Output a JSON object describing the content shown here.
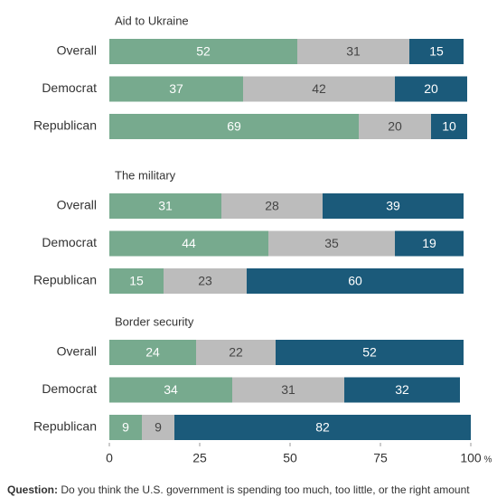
{
  "chart_data": {
    "type": "stacked-bar",
    "groups": [
      {
        "title": "Aid to Ukraine",
        "categories": [
          "Overall",
          "Democrat",
          "Republican"
        ],
        "series": [
          {
            "color": "#77aa8e",
            "values": [
              52,
              37,
              69
            ]
          },
          {
            "color": "#bcbcbc",
            "values": [
              31,
              42,
              20
            ]
          },
          {
            "color": "#1b5a7a",
            "values": [
              15,
              20,
              10
            ]
          }
        ]
      },
      {
        "title": "The military",
        "categories": [
          "Overall",
          "Democrat",
          "Republican"
        ],
        "series": [
          {
            "color": "#77aa8e",
            "values": [
              31,
              44,
              15
            ]
          },
          {
            "color": "#bcbcbc",
            "values": [
              28,
              35,
              23
            ]
          },
          {
            "color": "#1b5a7a",
            "values": [
              39,
              19,
              60
            ]
          }
        ]
      },
      {
        "title": "Border security",
        "categories": [
          "Overall",
          "Democrat",
          "Republican"
        ],
        "series": [
          {
            "color": "#77aa8e",
            "values": [
              24,
              34,
              9
            ]
          },
          {
            "color": "#bcbcbc",
            "values": [
              22,
              31,
              9
            ]
          },
          {
            "color": "#1b5a7a",
            "values": [
              52,
              32,
              82
            ]
          }
        ]
      }
    ],
    "xlim": [
      0,
      100
    ],
    "xticks": [
      0,
      25,
      50,
      75,
      100
    ],
    "xlabel": "%",
    "note_label": "Question:",
    "note": "Do you think the U.S. government is spending too much, too little, or the right amount"
  }
}
